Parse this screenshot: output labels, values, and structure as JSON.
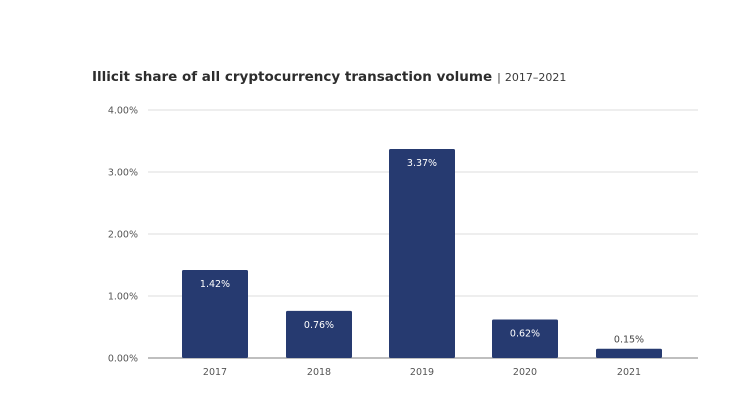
{
  "chart_data": {
    "type": "bar",
    "title": "Illicit share of all cryptocurrency transaction volume",
    "subtitle": "2017–2021",
    "categories": [
      "2017",
      "2018",
      "2019",
      "2020",
      "2021"
    ],
    "values": [
      1.42,
      0.76,
      3.37,
      0.62,
      0.15
    ],
    "data_labels": [
      "1.42%",
      "0.76%",
      "3.37%",
      "0.62%",
      "0.15%"
    ],
    "yticks": [
      "0.00%",
      "1.00%",
      "2.00%",
      "3.00%",
      "4.00%"
    ],
    "ylim": [
      0,
      4
    ],
    "xlabel": "",
    "ylabel": "",
    "grid": true,
    "bar_color": "#263a70"
  }
}
